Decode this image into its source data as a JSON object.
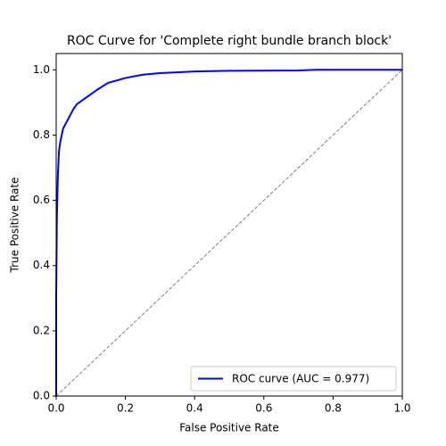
{
  "chart_data": {
    "type": "line",
    "title": "ROC Curve for 'Complete right bundle branch block'",
    "x_label": "False Positive Rate",
    "y_label": "True Positive Rate",
    "xlim": [
      0,
      1
    ],
    "ylim": [
      0,
      1.05
    ],
    "xticks": [
      {
        "value": 0,
        "label": "0.0"
      },
      {
        "value": 0.2,
        "label": "0.2"
      },
      {
        "value": 0.4,
        "label": "0.4"
      },
      {
        "value": 0.6,
        "label": "0.6"
      },
      {
        "value": 0.8,
        "label": "0.8"
      },
      {
        "value": 1,
        "label": "1.0"
      }
    ],
    "yticks": [
      {
        "value": 0,
        "label": "0.0"
      },
      {
        "value": 0.2,
        "label": "0.2"
      },
      {
        "value": 0.4,
        "label": "0.4"
      },
      {
        "value": 0.6,
        "label": "0.6"
      },
      {
        "value": 0.8,
        "label": "0.8"
      },
      {
        "value": 1,
        "label": "1.0"
      }
    ],
    "legend_position": "lower right",
    "series": [
      {
        "name": "ROC curve (AUC = 0.977)",
        "color": "#0000ff",
        "x": [
          0,
          0,
          0.002,
          0.005,
          0.008,
          0.012,
          0.02,
          0.03,
          0.04,
          0.05,
          0.06,
          0.08,
          0.1,
          0.12,
          0.15,
          0.2,
          0.25,
          0.3,
          0.4,
          0.5,
          0.7,
          0.75,
          1
        ],
        "values": [
          0,
          0.3,
          0.55,
          0.68,
          0.75,
          0.78,
          0.82,
          0.84,
          0.86,
          0.88,
          0.895,
          0.91,
          0.925,
          0.94,
          0.96,
          0.975,
          0.985,
          0.99,
          0.995,
          0.997,
          0.998,
          1,
          1
        ]
      }
    ],
    "reference_line": {
      "x": [
        0,
        1
      ],
      "values": [
        0,
        1
      ],
      "color": "#808080"
    }
  }
}
